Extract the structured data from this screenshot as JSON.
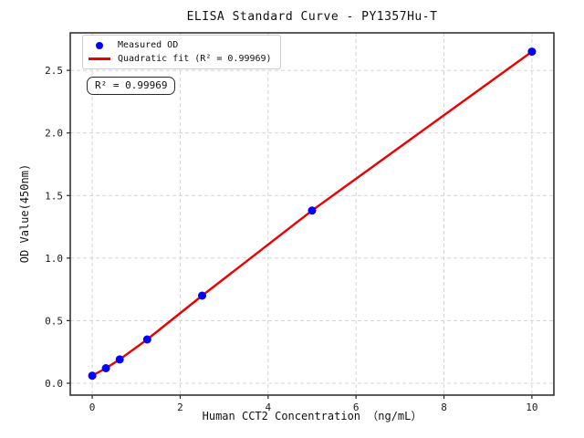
{
  "figure": {
    "background": "#ffffff",
    "text_color": "#1a1a1a"
  },
  "chart_data": {
    "type": "scatter",
    "title": "ELISA Standard Curve - PY1357Hu-T",
    "xlabel": "Human CCT2 Concentration （ng/mL）",
    "ylabel": "OD Value(450nm)",
    "xlim": [
      -0.5,
      10.5
    ],
    "ylim": [
      -0.095,
      2.8
    ],
    "x_ticks": [
      0,
      2,
      4,
      6,
      8,
      10
    ],
    "x_tick_labels": [
      "0",
      "2",
      "4",
      "6",
      "8",
      "10"
    ],
    "y_ticks": [
      0,
      0.5,
      1,
      1.5,
      2,
      2.5
    ],
    "y_tick_labels": [
      "0.0",
      "0.5",
      "1.0",
      "1.5",
      "2.0",
      "2.5"
    ],
    "grid": true,
    "grid_color": "#cfcfcf",
    "spine_color": "#262626",
    "legend": {
      "position": "upper-left",
      "items": [
        {
          "label": "Measured OD",
          "marker": "circle",
          "color": "#0000ff"
        },
        {
          "label": "Quadratic fit (R² = 0.99969)",
          "marker": "line",
          "color": "#ee0000"
        }
      ]
    },
    "series": [
      {
        "name": "Measured OD",
        "type": "scatter",
        "color": "#0000ff",
        "x": [
          0,
          0.3125,
          0.625,
          1.25,
          2.5,
          5,
          10
        ],
        "y": [
          0.06,
          0.12,
          0.19,
          0.35,
          0.7,
          1.38,
          2.65
        ]
      },
      {
        "name": "Quadratic fit (R² = 0.99969)",
        "type": "line",
        "color": "#ee0000",
        "r_squared": "0.99969"
      }
    ],
    "annotation": {
      "text": "R² = 0.99969"
    }
  }
}
